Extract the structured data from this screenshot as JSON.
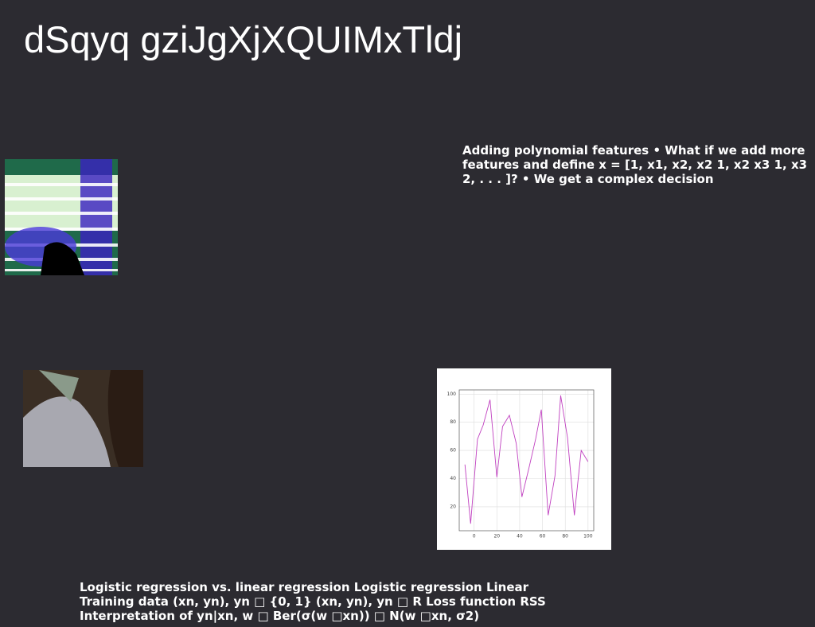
{
  "header": {
    "title": "dSqyq gziJgXjXQUIMxTldj"
  },
  "blocks": [
    "Adding polynomial features • What if we add more features and define x = [1, x1, x2, x2 1, x2 x3 1, x3 2, . . . ]? • We get a complex decision",
    "Logistic regression vs. linear regression Logistic regression Linear Training data (xn, yn), yn □ {0, 1} (xn, yn), yn □ R Loss function RSS Interpretation of yn|xn, w □ Ber(σ(w □xn)) □ N(w □xn, σ2)"
  ],
  "chart_data": {
    "type": "line",
    "x": [
      -8,
      -3,
      3,
      8,
      14,
      20,
      25,
      31,
      37,
      42,
      48,
      54,
      59,
      65,
      71,
      76,
      82,
      88,
      94,
      100
    ],
    "series": [
      {
        "color": "#c040c0",
        "values": [
          50,
          8,
          68,
          78,
          96,
          41,
          77,
          85,
          65,
          27,
          47,
          68,
          89,
          14,
          42,
          99,
          69,
          14,
          60,
          52
        ]
      }
    ],
    "xlim": [
      -13,
      105
    ],
    "ylim": [
      3,
      103
    ],
    "xticks": [
      0,
      20,
      40,
      60,
      80,
      100
    ],
    "yticks": [
      20,
      40,
      60,
      80,
      100
    ],
    "grid": true
  }
}
